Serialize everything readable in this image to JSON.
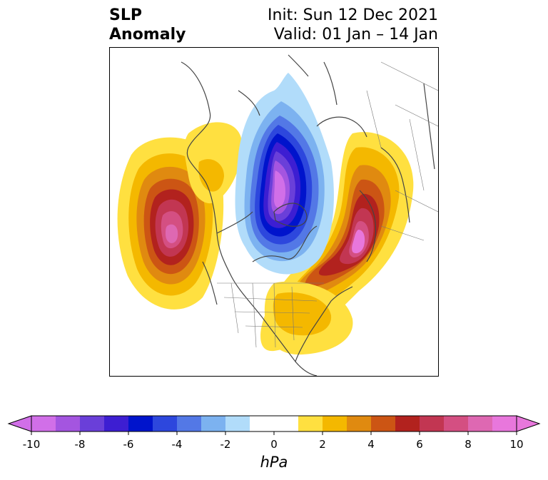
{
  "title": {
    "line1": "SLP",
    "line2": "Anomaly",
    "init": "Init: Sun 12 Dec 2021",
    "valid": "Valid: 01 Jan – 14 Jan"
  },
  "colorbar": {
    "unit_label": "hPa",
    "ticks": [
      "-10",
      "-8",
      "-6",
      "-4",
      "-2",
      "0",
      "2",
      "4",
      "6",
      "8",
      "10"
    ],
    "colors": [
      "#d16fe8",
      "#a455e0",
      "#6a3fd9",
      "#3d1ed2",
      "#0014cc",
      "#2d47dd",
      "#5378e6",
      "#7cb2f0",
      "#b1dcfa",
      "#ffffff",
      "#ffffff",
      "#ffe040",
      "#f4b800",
      "#e08a10",
      "#cc5514",
      "#b2221e",
      "#c23652",
      "#d44f82",
      "#de68b2",
      "#e877dc"
    ]
  },
  "map": {
    "projection": "north-polar-stereographic",
    "features": [
      {
        "name": "pacific-high-anomaly",
        "sign": "positive",
        "peak_hpa": 10
      },
      {
        "name": "atlantic-europe-high-anomaly",
        "sign": "positive",
        "peak_hpa": 10
      },
      {
        "name": "arctic-low-anomaly",
        "sign": "negative",
        "peak_hpa": -10
      },
      {
        "name": "siberia-high-anomaly",
        "sign": "positive",
        "peak_hpa": 2
      },
      {
        "name": "eastern-us-high-anomaly",
        "sign": "positive",
        "peak_hpa": 3
      }
    ]
  }
}
